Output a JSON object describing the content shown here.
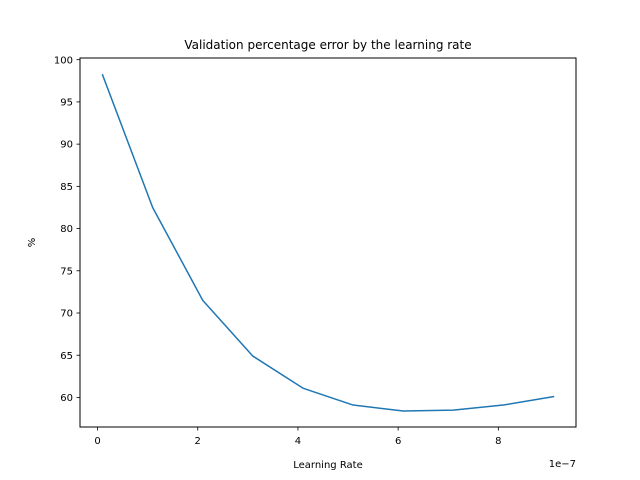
{
  "chart_data": {
    "type": "line",
    "title": "Validation percentage error by the learning rate",
    "xlabel": "Learning Rate",
    "ylabel": "%",
    "x_offset_text": "1e−7",
    "xlim": [
      -0.35,
      9.55
    ],
    "ylim": [
      56.5,
      100.2
    ],
    "xticks": [
      0,
      2,
      4,
      6,
      8
    ],
    "xtick_labels": [
      "0",
      "2",
      "4",
      "6",
      "8"
    ],
    "yticks": [
      60,
      65,
      70,
      75,
      80,
      85,
      90,
      95,
      100
    ],
    "ytick_labels": [
      "60",
      "65",
      "70",
      "75",
      "80",
      "85",
      "90",
      "95",
      "100"
    ],
    "grid": false,
    "line_color": "#1f77b4",
    "series": [
      {
        "x": [
          0.1,
          1.1,
          2.1,
          3.1,
          4.1,
          5.1,
          6.1,
          7.1,
          8.1,
          9.1
        ],
        "values": [
          98.2,
          82.5,
          71.5,
          64.9,
          61.1,
          59.1,
          58.4,
          58.5,
          59.1,
          60.1
        ]
      }
    ]
  }
}
